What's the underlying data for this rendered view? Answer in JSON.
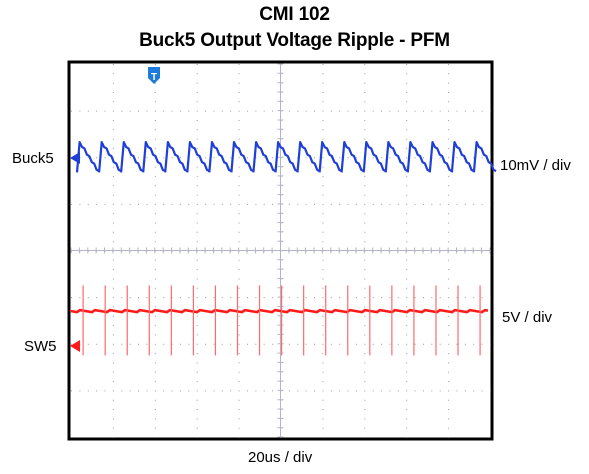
{
  "chart_data": {
    "type": "line",
    "title": "CMI  102",
    "subtitle": "Buck5 Output Voltage Ripple - PFM",
    "xlabel": "20us / div",
    "timebase": "20us / div",
    "grid": true,
    "grid_divisions": {
      "horizontal": 10,
      "vertical": 8
    },
    "trigger_marker": "T",
    "series": [
      {
        "name": "Buck5",
        "color": "#1f3fd6",
        "scale": "10mV / div",
        "waveform": "sawtooth",
        "cycles": 19,
        "peak_to_peak_div": 0.65,
        "level_div": 2.0
      },
      {
        "name": "SW5",
        "color": "#ff1a1a",
        "scale": "5V / div",
        "waveform": "pulse train",
        "pulses": 19,
        "spike_up_div": 0.55,
        "spike_down_div": 0.95,
        "level_div": -1.3
      }
    ]
  }
}
